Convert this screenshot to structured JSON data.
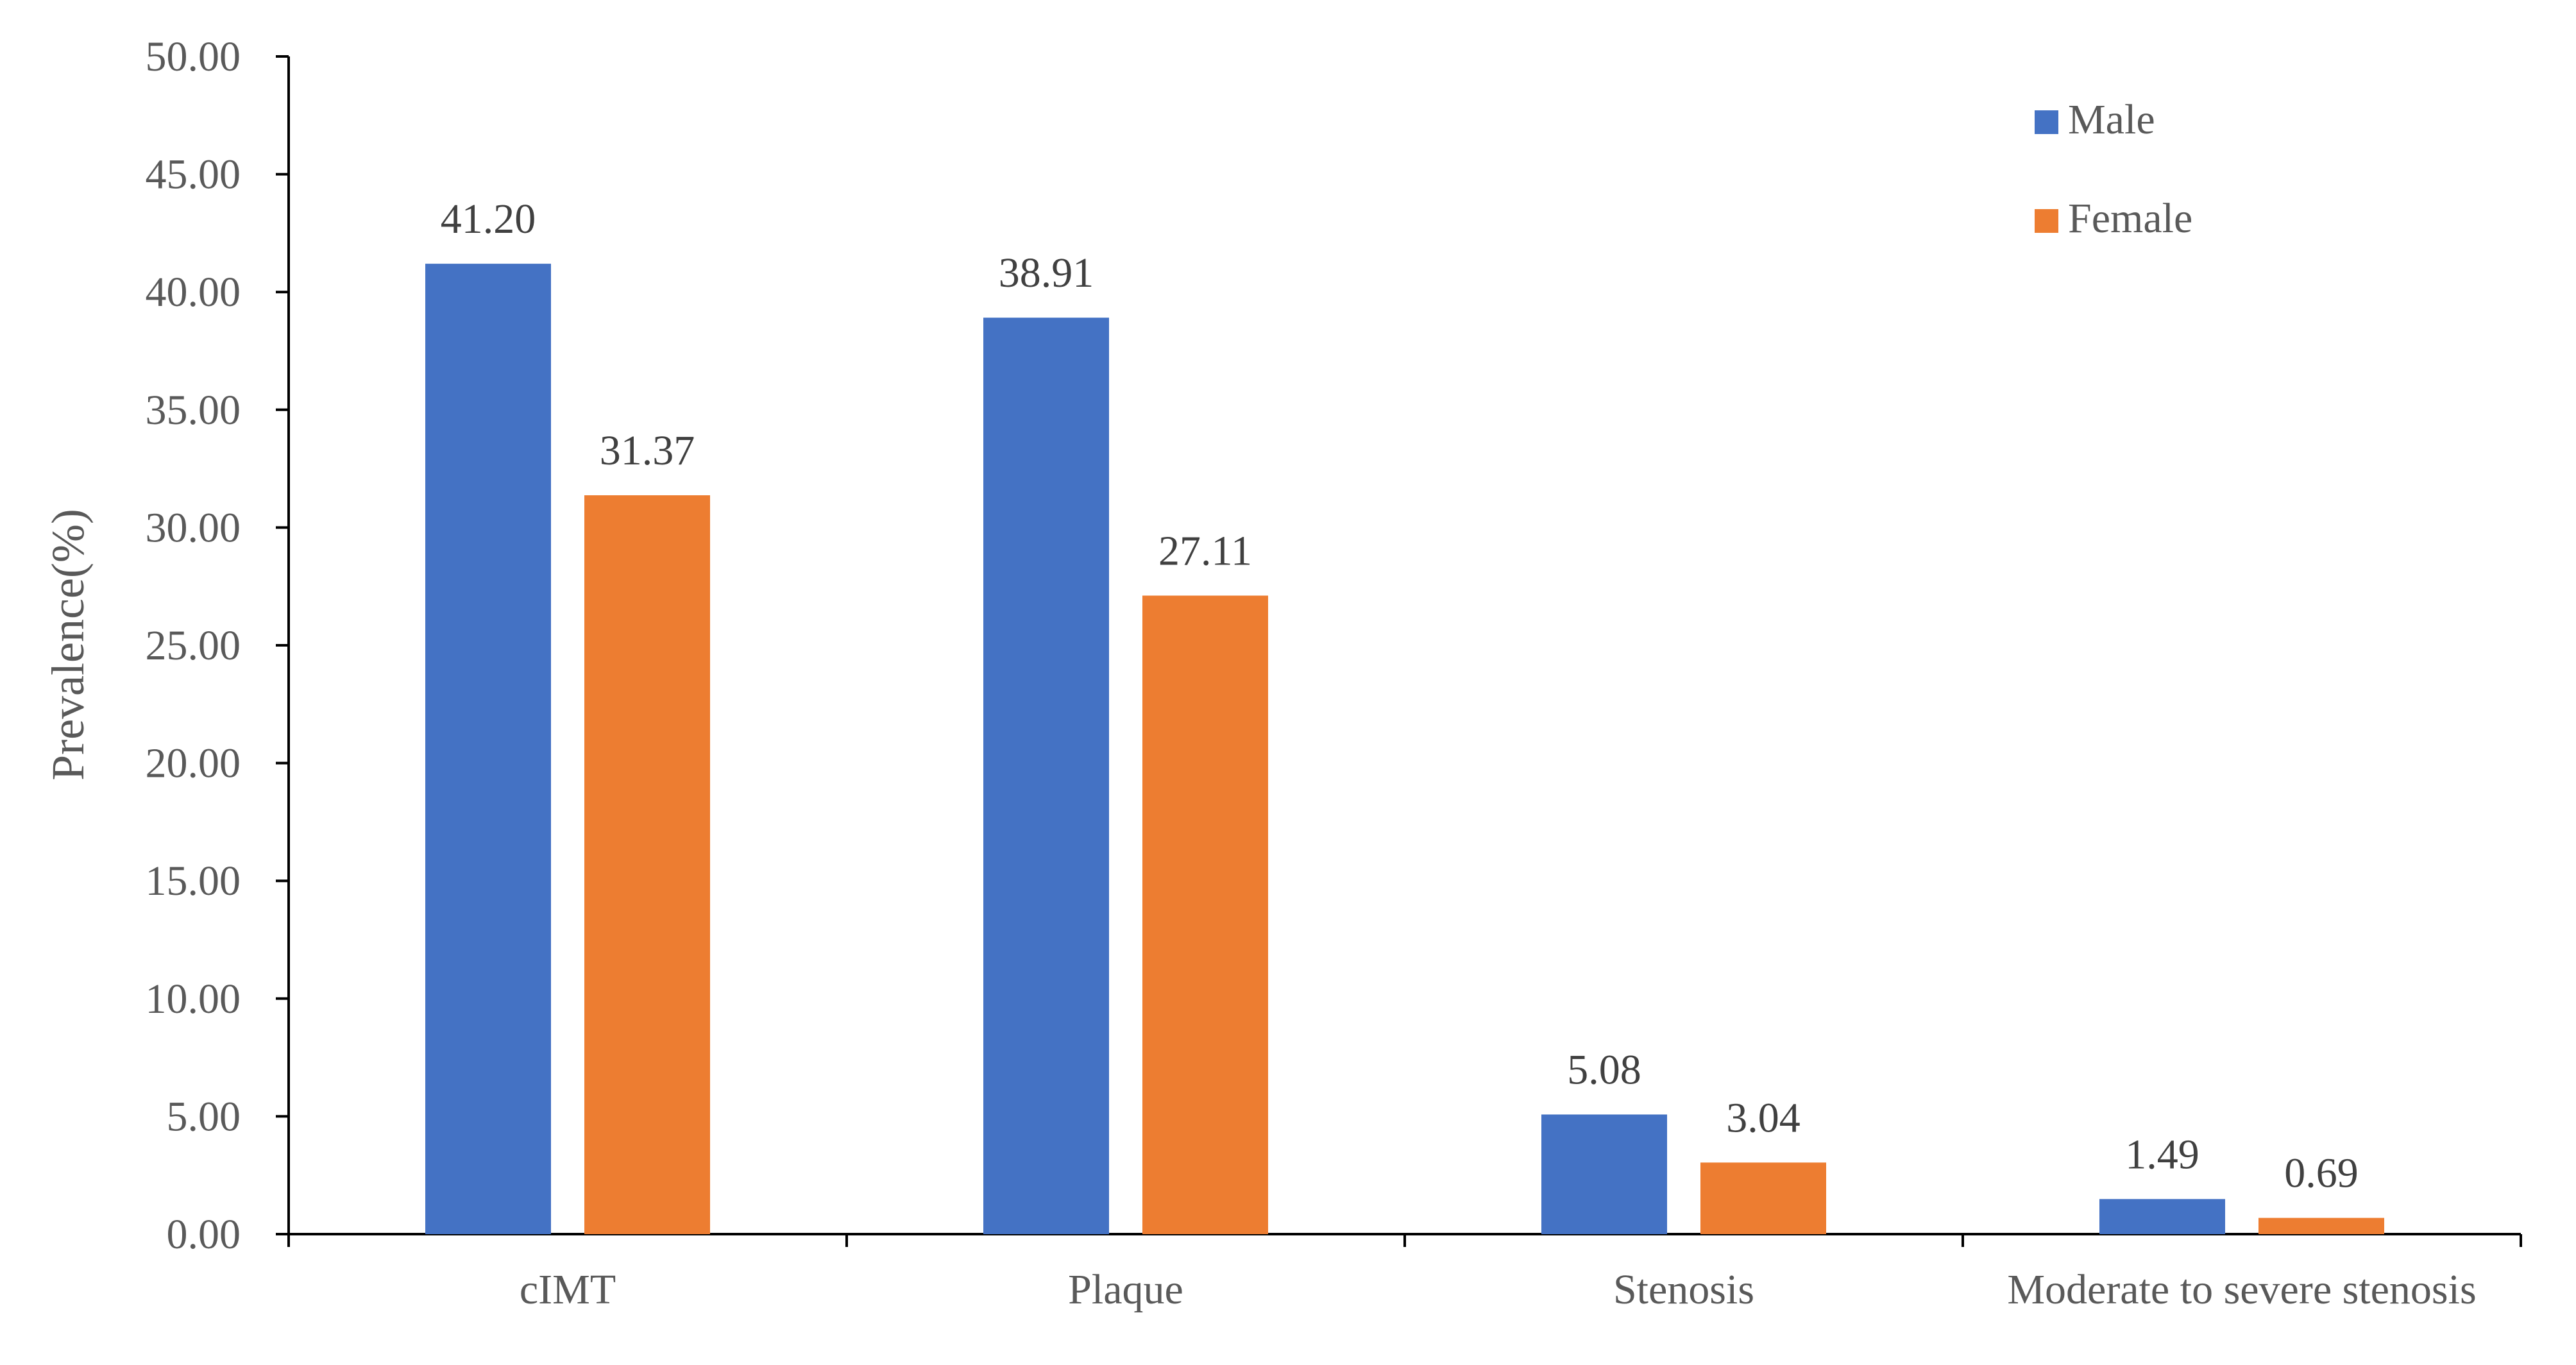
{
  "chart_data": {
    "type": "bar",
    "title": "",
    "xlabel": "",
    "ylabel": "Prevalence(%)",
    "ylim": [
      0,
      50
    ],
    "yticks": [
      "0.00",
      "5.00",
      "10.00",
      "15.00",
      "20.00",
      "25.00",
      "30.00",
      "35.00",
      "40.00",
      "45.00",
      "50.00"
    ],
    "categories": [
      "cIMT",
      "Plaque",
      "Stenosis",
      "Moderate to severe stenosis"
    ],
    "series": [
      {
        "name": "Male",
        "color": "#4472C4",
        "values": [
          41.2,
          38.91,
          5.08,
          1.49
        ],
        "labels": [
          "41.20",
          "38.91",
          "5.08",
          "1.49"
        ]
      },
      {
        "name": "Female",
        "color": "#ED7D31",
        "values": [
          31.37,
          27.11,
          3.04,
          0.69
        ],
        "labels": [
          "31.37",
          "27.11",
          "3.04",
          "0.69"
        ]
      }
    ],
    "grid": false,
    "legend_position": "top-right"
  }
}
